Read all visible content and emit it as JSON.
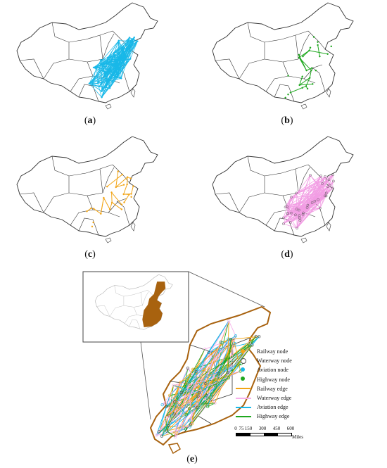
{
  "panels": [
    {
      "id": "a",
      "caption_open": "(",
      "caption_letter": "a",
      "caption_close": ")",
      "network": "Aviation",
      "color": "#19b8e8"
    },
    {
      "id": "b",
      "caption_open": "(",
      "caption_letter": "b",
      "caption_close": ")",
      "network": "Highway",
      "color": "#1fa81f"
    },
    {
      "id": "c",
      "caption_open": "(",
      "caption_letter": "c",
      "caption_close": ")",
      "network": "Railway",
      "color": "#f2a516"
    },
    {
      "id": "d",
      "caption_open": "(",
      "caption_letter": "d",
      "caption_close": ")",
      "network": "Waterway",
      "color": "#f29de4"
    },
    {
      "id": "e",
      "caption_open": "(",
      "caption_letter": "e",
      "caption_close": ")",
      "network": "Combined",
      "color": "#a8620f"
    }
  ],
  "legend": [
    {
      "label": "Railway node",
      "kind": "node",
      "color": "#f2a516"
    },
    {
      "label": "Waterway node",
      "kind": "node",
      "color": "#555555"
    },
    {
      "label": "Aviation node",
      "kind": "node",
      "color": "#19b8e8"
    },
    {
      "label": "Highway node",
      "kind": "node",
      "color": "#1fa81f"
    },
    {
      "label": "Railway edge",
      "kind": "edge",
      "color": "#f2a516"
    },
    {
      "label": "Waterway edge",
      "kind": "edge",
      "color": "#f7b0ea"
    },
    {
      "label": "Aviation edge",
      "kind": "edge",
      "color": "#19b8e8"
    },
    {
      "label": "Highway edge",
      "kind": "edge",
      "color": "#1fa81f"
    }
  ],
  "scale_bar": {
    "ticks": [
      "0",
      "75",
      "150",
      "300",
      "450",
      "600"
    ],
    "unit": "Miles"
  },
  "colors": {
    "outline": "#333333",
    "region_fill": "#a8620f",
    "inset_outline": "#b8b8b8"
  }
}
